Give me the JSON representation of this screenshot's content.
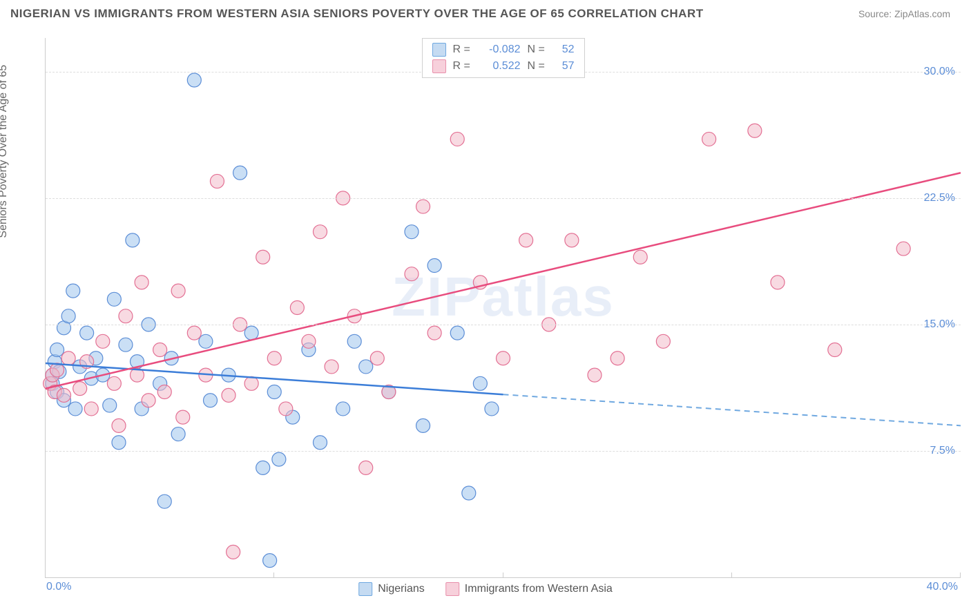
{
  "title": "NIGERIAN VS IMMIGRANTS FROM WESTERN ASIA SENIORS POVERTY OVER THE AGE OF 65 CORRELATION CHART",
  "source": "Source: ZipAtlas.com",
  "watermark": "ZIPatlas",
  "ylabel": "Seniors Poverty Over the Age of 65",
  "chart": {
    "type": "scatter",
    "xlim": [
      0,
      40
    ],
    "ylim": [
      0,
      32
    ],
    "xtick_labels": [
      "0.0%",
      "40.0%"
    ],
    "ytick_positions": [
      7.5,
      15.0,
      22.5,
      30.0
    ],
    "ytick_labels": [
      "7.5%",
      "15.0%",
      "22.5%",
      "30.0%"
    ],
    "background_color": "#ffffff",
    "grid_color": "#dddddd",
    "axis_color": "#cccccc",
    "tick_label_color": "#5b8dd6",
    "marker_radius": 10,
    "marker_opacity": 0.55,
    "series": [
      {
        "name": "Nigerians",
        "color_fill": "#9fc5ec",
        "color_stroke": "#5b8dd6",
        "R": "-0.082",
        "N": "52",
        "trend": {
          "y_at_x0": 12.7,
          "y_at_xmax": 9.0,
          "solid_until_x": 20,
          "stroke": "#3b7dd8",
          "dash_stroke": "#6fa8e0"
        },
        "points": [
          [
            0.3,
            12.0
          ],
          [
            0.3,
            11.5
          ],
          [
            0.4,
            12.8
          ],
          [
            0.5,
            13.5
          ],
          [
            0.5,
            11.0
          ],
          [
            0.6,
            12.2
          ],
          [
            0.8,
            10.5
          ],
          [
            0.8,
            14.8
          ],
          [
            1.0,
            15.5
          ],
          [
            1.2,
            17.0
          ],
          [
            1.3,
            10.0
          ],
          [
            1.5,
            12.5
          ],
          [
            1.8,
            14.5
          ],
          [
            2.0,
            11.8
          ],
          [
            2.2,
            13.0
          ],
          [
            2.5,
            12.0
          ],
          [
            2.8,
            10.2
          ],
          [
            3.0,
            16.5
          ],
          [
            3.2,
            8.0
          ],
          [
            3.5,
            13.8
          ],
          [
            3.8,
            20.0
          ],
          [
            4.0,
            12.8
          ],
          [
            4.2,
            10.0
          ],
          [
            4.5,
            15.0
          ],
          [
            5.0,
            11.5
          ],
          [
            5.2,
            4.5
          ],
          [
            5.5,
            13.0
          ],
          [
            5.8,
            8.5
          ],
          [
            6.5,
            29.5
          ],
          [
            7.0,
            14.0
          ],
          [
            7.2,
            10.5
          ],
          [
            8.0,
            12.0
          ],
          [
            8.5,
            24.0
          ],
          [
            9.0,
            14.5
          ],
          [
            9.5,
            6.5
          ],
          [
            9.8,
            1.0
          ],
          [
            10.0,
            11.0
          ],
          [
            10.2,
            7.0
          ],
          [
            10.8,
            9.5
          ],
          [
            11.5,
            13.5
          ],
          [
            12.0,
            8.0
          ],
          [
            13.0,
            10.0
          ],
          [
            13.5,
            14.0
          ],
          [
            14.0,
            12.5
          ],
          [
            15.0,
            11.0
          ],
          [
            16.0,
            20.5
          ],
          [
            16.5,
            9.0
          ],
          [
            17.0,
            18.5
          ],
          [
            18.0,
            14.5
          ],
          [
            18.5,
            5.0
          ],
          [
            19.0,
            11.5
          ],
          [
            19.5,
            10.0
          ]
        ]
      },
      {
        "name": "Immigrants from Western Asia",
        "color_fill": "#f3bccb",
        "color_stroke": "#e36f93",
        "R": "0.522",
        "N": "57",
        "trend": {
          "y_at_x0": 11.2,
          "y_at_xmax": 24.0,
          "solid_until_x": 40,
          "stroke": "#e84c7e",
          "dash_stroke": "#e84c7e"
        },
        "points": [
          [
            0.2,
            11.5
          ],
          [
            0.3,
            12.0
          ],
          [
            0.4,
            11.0
          ],
          [
            0.5,
            12.3
          ],
          [
            0.8,
            10.8
          ],
          [
            1.0,
            13.0
          ],
          [
            1.5,
            11.2
          ],
          [
            1.8,
            12.8
          ],
          [
            2.0,
            10.0
          ],
          [
            2.5,
            14.0
          ],
          [
            3.0,
            11.5
          ],
          [
            3.2,
            9.0
          ],
          [
            3.5,
            15.5
          ],
          [
            4.0,
            12.0
          ],
          [
            4.2,
            17.5
          ],
          [
            4.5,
            10.5
          ],
          [
            5.0,
            13.5
          ],
          [
            5.2,
            11.0
          ],
          [
            5.8,
            17.0
          ],
          [
            6.0,
            9.5
          ],
          [
            6.5,
            14.5
          ],
          [
            7.0,
            12.0
          ],
          [
            7.5,
            23.5
          ],
          [
            8.0,
            10.8
          ],
          [
            8.2,
            1.5
          ],
          [
            8.5,
            15.0
          ],
          [
            9.0,
            11.5
          ],
          [
            9.5,
            19.0
          ],
          [
            10.0,
            13.0
          ],
          [
            10.5,
            10.0
          ],
          [
            11.0,
            16.0
          ],
          [
            11.5,
            14.0
          ],
          [
            12.0,
            20.5
          ],
          [
            12.5,
            12.5
          ],
          [
            13.0,
            22.5
          ],
          [
            13.5,
            15.5
          ],
          [
            14.0,
            6.5
          ],
          [
            14.5,
            13.0
          ],
          [
            15.0,
            11.0
          ],
          [
            16.0,
            18.0
          ],
          [
            16.5,
            22.0
          ],
          [
            17.0,
            14.5
          ],
          [
            18.0,
            26.0
          ],
          [
            19.0,
            17.5
          ],
          [
            20.0,
            13.0
          ],
          [
            21.0,
            20.0
          ],
          [
            22.0,
            15.0
          ],
          [
            23.0,
            20.0
          ],
          [
            24.0,
            12.0
          ],
          [
            25.0,
            13.0
          ],
          [
            26.0,
            19.0
          ],
          [
            27.0,
            14.0
          ],
          [
            29.0,
            26.0
          ],
          [
            31.0,
            26.5
          ],
          [
            32.0,
            17.5
          ],
          [
            34.5,
            13.5
          ],
          [
            37.5,
            19.5
          ]
        ]
      }
    ]
  },
  "legend_top": {
    "rows": [
      {
        "swatch": "blue",
        "R_label": "R =",
        "R": "-0.082",
        "N_label": "N =",
        "N": "52"
      },
      {
        "swatch": "pink",
        "R_label": "R =",
        "R": "0.522",
        "N_label": "N =",
        "N": "57"
      }
    ]
  },
  "legend_bottom": {
    "items": [
      {
        "swatch": "blue",
        "label": "Nigerians"
      },
      {
        "swatch": "pink",
        "label": "Immigrants from Western Asia"
      }
    ]
  }
}
